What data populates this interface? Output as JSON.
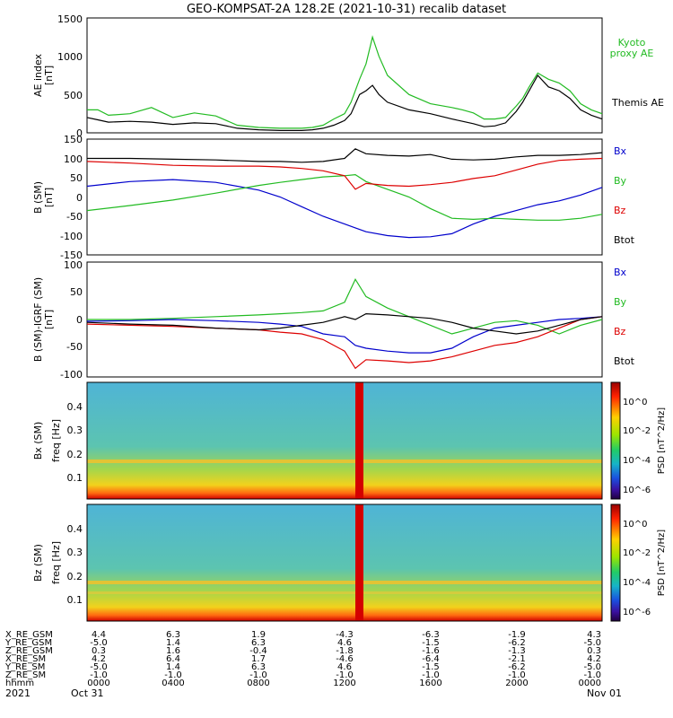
{
  "title": "GEO-KOMPSAT-2A 128.2E (2021-10-31) recalib dataset",
  "panels": {
    "ae": {
      "ylabel": "AE index",
      "unit": "[nT]",
      "ticks": [
        "0",
        "500",
        "1000",
        "1500"
      ],
      "legend": [
        {
          "text": "Kyoto",
          "color": "#22bb22"
        },
        {
          "text": "proxy AE",
          "color": "#22bb22"
        },
        {
          "text": "Themis AE",
          "color": "#000000"
        }
      ]
    },
    "bsm": {
      "ylabel": "B (SM)",
      "unit": "[nT]",
      "ticks": [
        "-150",
        "-100",
        "-50",
        "0",
        "50",
        "100",
        "150"
      ],
      "legend": [
        {
          "text": "Bx",
          "color": "#0000cc"
        },
        {
          "text": "By",
          "color": "#22bb22"
        },
        {
          "text": "Bz",
          "color": "#dd0000"
        },
        {
          "text": "Btot",
          "color": "#000000"
        }
      ]
    },
    "bdiff": {
      "ylabel": "B (SM)-IGRF (SM)",
      "unit": "[nT]",
      "ticks": [
        "-100",
        "-50",
        "0",
        "50",
        "100"
      ],
      "legend": [
        {
          "text": "Bx",
          "color": "#0000cc"
        },
        {
          "text": "By",
          "color": "#22bb22"
        },
        {
          "text": "Bz",
          "color": "#dd0000"
        },
        {
          "text": "Btot",
          "color": "#000000"
        }
      ]
    },
    "spec_bx": {
      "ylabel": "Bx (SM)",
      "ylabel2": "freq [Hz]",
      "ticks": [
        "0.1",
        "0.2",
        "0.3",
        "0.4"
      ],
      "cbar_ticks": [
        "10^0",
        "10^-2",
        "10^-4",
        "10^-6"
      ],
      "cbar_label": "PSD [nT^2/Hz]"
    },
    "spec_bz": {
      "ylabel": "Bz (SM)",
      "ylabel2": "freq [Hz]",
      "ticks": [
        "0.1",
        "0.2",
        "0.3",
        "0.4"
      ],
      "cbar_ticks": [
        "10^0",
        "10^-2",
        "10^-4",
        "10^-6"
      ],
      "cbar_label": "PSD [nT^2/Hz]"
    }
  },
  "ephemeris": {
    "rows": [
      {
        "label": "X_RE_GSM",
        "values": [
          "4.4",
          "6.3",
          "1.9",
          "-4.3",
          "-6.3",
          "-1.9",
          "4.3"
        ]
      },
      {
        "label": "Y_RE_GSM",
        "values": [
          "-5.0",
          "1.4",
          "6.3",
          "4.6",
          "-1.5",
          "-6.2",
          "-5.0"
        ]
      },
      {
        "label": "Z_RE_GSM",
        "values": [
          "0.3",
          "1.6",
          "-0.4",
          "-1.8",
          "-1.6",
          "-1.3",
          "0.3"
        ]
      },
      {
        "label": "X_RE_SM",
        "values": [
          "4.2",
          "6.4",
          "1.7",
          "-4.6",
          "-6.4",
          "-2.1",
          "4.2"
        ]
      },
      {
        "label": "Y_RE_SM",
        "values": [
          "-5.0",
          "1.4",
          "6.3",
          "4.6",
          "-1.5",
          "-6.2",
          "-5.0"
        ]
      },
      {
        "label": "Z_RE_SM",
        "values": [
          "-1.0",
          "-1.0",
          "-1.0",
          "-1.0",
          "-1.0",
          "-1.0",
          "-1.0"
        ]
      },
      {
        "label": "hhmm",
        "values": [
          "0000",
          "0400",
          "0800",
          "1200",
          "1600",
          "2000",
          "0000"
        ]
      }
    ],
    "year": "2021",
    "date_start": "Oct 31",
    "date_end": "Nov 01"
  },
  "chart_data": [
    {
      "type": "line",
      "ylabel": "AE index [nT]",
      "ylim": [
        0,
        1500
      ],
      "xlim_hours": [
        0,
        24
      ],
      "series": [
        {
          "name": "Kyoto proxy AE",
          "color": "#22bb22",
          "x": [
            0,
            0.5,
            1,
            2,
            3,
            4,
            5,
            6,
            7,
            8,
            9,
            10,
            10.5,
            11,
            11.5,
            12,
            12.3,
            12.7,
            13,
            13.3,
            13.6,
            14,
            15,
            16,
            17,
            17.5,
            18,
            18.5,
            19,
            19.5,
            20,
            20.3,
            20.6,
            21,
            21.5,
            22,
            22.5,
            23,
            23.5,
            24
          ],
          "y": [
            300,
            300,
            230,
            250,
            330,
            200,
            260,
            220,
            100,
            70,
            60,
            60,
            70,
            100,
            180,
            250,
            400,
            700,
            900,
            1250,
            1000,
            750,
            500,
            380,
            330,
            300,
            260,
            180,
            180,
            200,
            350,
            450,
            600,
            780,
            700,
            650,
            550,
            380,
            300,
            250
          ]
        },
        {
          "name": "Themis AE",
          "color": "#000000",
          "x": [
            0,
            0.5,
            1,
            2,
            3,
            4,
            5,
            6,
            7,
            8,
            9,
            10,
            10.5,
            11,
            11.5,
            12,
            12.3,
            12.7,
            13,
            13.3,
            13.6,
            14,
            15,
            16,
            17,
            17.5,
            18,
            18.5,
            19,
            19.5,
            20,
            20.3,
            20.6,
            21,
            21.5,
            22,
            22.5,
            23,
            23.5,
            24
          ],
          "y": [
            200,
            170,
            140,
            150,
            140,
            110,
            130,
            120,
            60,
            40,
            30,
            30,
            40,
            60,
            100,
            160,
            250,
            500,
            550,
            620,
            500,
            400,
            300,
            250,
            180,
            150,
            120,
            80,
            90,
            130,
            280,
            400,
            550,
            750,
            600,
            550,
            450,
            300,
            230,
            180
          ]
        }
      ]
    },
    {
      "type": "line",
      "ylabel": "B (SM) [nT]",
      "ylim": [
        -150,
        150
      ],
      "xlim_hours": [
        0,
        24
      ],
      "series": [
        {
          "name": "Bx",
          "color": "#0000cc",
          "x": [
            0,
            2,
            4,
            6,
            8,
            9,
            10,
            11,
            12,
            12.5,
            13,
            14,
            15,
            16,
            17,
            18,
            19,
            20,
            21,
            22,
            23,
            24
          ],
          "y": [
            28,
            40,
            45,
            38,
            18,
            0,
            -25,
            -50,
            -70,
            -80,
            -90,
            -100,
            -105,
            -103,
            -95,
            -70,
            -50,
            -35,
            -20,
            -10,
            5,
            25
          ]
        },
        {
          "name": "By",
          "color": "#22bb22",
          "x": [
            0,
            2,
            4,
            6,
            8,
            9,
            10,
            11,
            12,
            12.5,
            13,
            14,
            15,
            16,
            17,
            18,
            19,
            20,
            21,
            22,
            23,
            24
          ],
          "y": [
            -35,
            -22,
            -8,
            10,
            30,
            38,
            45,
            52,
            55,
            58,
            40,
            20,
            0,
            -30,
            -55,
            -58,
            -55,
            -58,
            -60,
            -60,
            -55,
            -45
          ]
        },
        {
          "name": "Bz",
          "color": "#dd0000",
          "x": [
            0,
            2,
            4,
            6,
            8,
            9,
            10,
            11,
            12,
            12.5,
            13,
            14,
            15,
            16,
            17,
            18,
            19,
            20,
            21,
            22,
            23,
            24
          ],
          "y": [
            92,
            88,
            82,
            80,
            80,
            78,
            74,
            68,
            55,
            20,
            35,
            30,
            28,
            32,
            38,
            48,
            55,
            70,
            85,
            95,
            98,
            100
          ]
        },
        {
          "name": "Btot",
          "color": "#000000",
          "x": [
            0,
            2,
            4,
            6,
            8,
            9,
            10,
            11,
            12,
            12.5,
            13,
            14,
            15,
            16,
            17,
            18,
            19,
            20,
            21,
            22,
            23,
            24
          ],
          "y": [
            100,
            100,
            98,
            96,
            92,
            92,
            90,
            92,
            100,
            125,
            112,
            108,
            106,
            110,
            98,
            96,
            98,
            104,
            108,
            108,
            110,
            115
          ]
        }
      ]
    },
    {
      "type": "line",
      "ylabel": "B (SM)-IGRF (SM) [nT]",
      "ylim": [
        -100,
        100
      ],
      "xlim_hours": [
        0,
        24
      ],
      "series": [
        {
          "name": "Bx",
          "color": "#0000cc",
          "x": [
            0,
            2,
            4,
            6,
            8,
            9,
            10,
            11,
            12,
            12.5,
            13,
            14,
            15,
            16,
            17,
            18,
            19,
            20,
            21,
            22,
            23,
            24
          ],
          "y": [
            -3,
            -2,
            0,
            -2,
            -5,
            -8,
            -12,
            -25,
            -30,
            -45,
            -50,
            -55,
            -58,
            -58,
            -50,
            -30,
            -15,
            -10,
            -5,
            0,
            2,
            5
          ]
        },
        {
          "name": "By",
          "color": "#22bb22",
          "x": [
            0,
            2,
            4,
            6,
            8,
            9,
            10,
            11,
            12,
            12.5,
            13,
            14,
            15,
            16,
            17,
            18,
            19,
            20,
            21,
            22,
            23,
            24
          ],
          "y": [
            0,
            0,
            2,
            5,
            8,
            10,
            12,
            15,
            30,
            70,
            40,
            20,
            5,
            -10,
            -25,
            -15,
            -5,
            -2,
            -10,
            -25,
            -10,
            0
          ]
        },
        {
          "name": "Bz",
          "color": "#dd0000",
          "x": [
            0,
            2,
            4,
            6,
            8,
            9,
            10,
            11,
            12,
            12.5,
            13,
            14,
            15,
            16,
            17,
            18,
            19,
            20,
            21,
            22,
            23,
            24
          ],
          "y": [
            -8,
            -10,
            -12,
            -15,
            -18,
            -22,
            -25,
            -35,
            -55,
            -85,
            -70,
            -72,
            -75,
            -72,
            -65,
            -55,
            -45,
            -40,
            -30,
            -15,
            0,
            5
          ]
        },
        {
          "name": "Btot",
          "color": "#000000",
          "x": [
            0,
            2,
            4,
            6,
            8,
            9,
            10,
            11,
            12,
            12.5,
            13,
            14,
            15,
            16,
            17,
            18,
            19,
            20,
            21,
            22,
            23,
            24
          ],
          "y": [
            -5,
            -8,
            -10,
            -15,
            -18,
            -15,
            -10,
            -5,
            5,
            0,
            10,
            8,
            5,
            2,
            -5,
            -15,
            -20,
            -25,
            -20,
            -10,
            0,
            5
          ]
        }
      ]
    },
    {
      "type": "heatmap",
      "title": "Bx (SM) freq [Hz]",
      "ylim": [
        0,
        0.5
      ],
      "xlim_hours": [
        0,
        24
      ],
      "colorbar": "PSD [nT^2/Hz]"
    },
    {
      "type": "heatmap",
      "title": "Bz (SM) freq [Hz]",
      "ylim": [
        0,
        0.5
      ],
      "xlim_hours": [
        0,
        24
      ],
      "colorbar": "PSD [nT^2/Hz]"
    }
  ]
}
